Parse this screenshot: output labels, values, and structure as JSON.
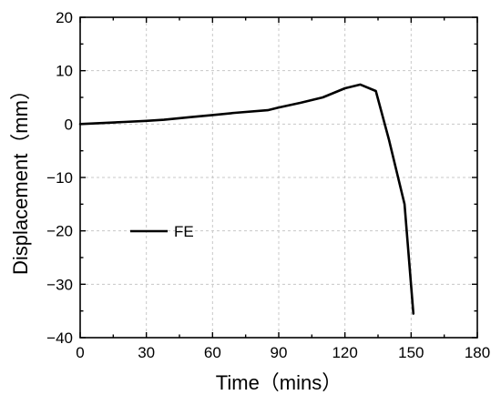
{
  "chart_data": {
    "type": "line",
    "xlabel": "Time（mins）",
    "ylabel": "Displacement（mm）",
    "xlim": [
      0,
      180
    ],
    "ylim": [
      -40,
      20
    ],
    "xticks": [
      0,
      30,
      60,
      90,
      120,
      150,
      180
    ],
    "yticks": [
      20,
      10,
      0,
      -10,
      -20,
      -30,
      -40
    ],
    "grid": true,
    "legend": {
      "placement": "middle-left"
    },
    "series": [
      {
        "name": "FE",
        "color": "#000000",
        "x": [
          0,
          10,
          20,
          30,
          38,
          50,
          60,
          70,
          85,
          90,
          100,
          110,
          120,
          127,
          134,
          140,
          147,
          151
        ],
        "y": [
          0,
          0.2,
          0.4,
          0.6,
          0.8,
          1.3,
          1.7,
          2.1,
          2.6,
          3.1,
          4.0,
          5.0,
          6.7,
          7.4,
          6.2,
          -3.0,
          -15.0,
          -35.5
        ]
      }
    ]
  }
}
